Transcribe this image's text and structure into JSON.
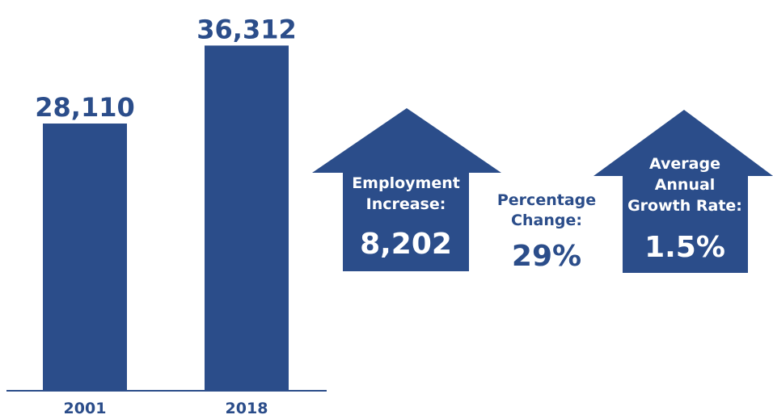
{
  "colors": {
    "bar": "#2b4d8a",
    "text": "#2b4d8a",
    "arrow_text": "#ffffff",
    "axis": "#2b4d8a"
  },
  "chart_data": {
    "type": "bar",
    "categories": [
      "2001",
      "2018"
    ],
    "values": [
      28110,
      36312
    ],
    "value_labels": [
      "28,110",
      "36,312"
    ],
    "ylim": [
      0,
      40000
    ],
    "grid": false
  },
  "stats": {
    "employment_increase": {
      "label_line1": "Employment",
      "label_line2": "Increase:",
      "value": "8,202",
      "icon": "up-arrow-icon"
    },
    "percentage_change": {
      "label_line1": "Percentage",
      "label_line2": "Change:",
      "value": "29%"
    },
    "average_annual_growth": {
      "label_line1": "Average",
      "label_line2": "Annual",
      "label_line3": "Growth Rate:",
      "value": "1.5%",
      "icon": "up-arrow-icon"
    }
  }
}
